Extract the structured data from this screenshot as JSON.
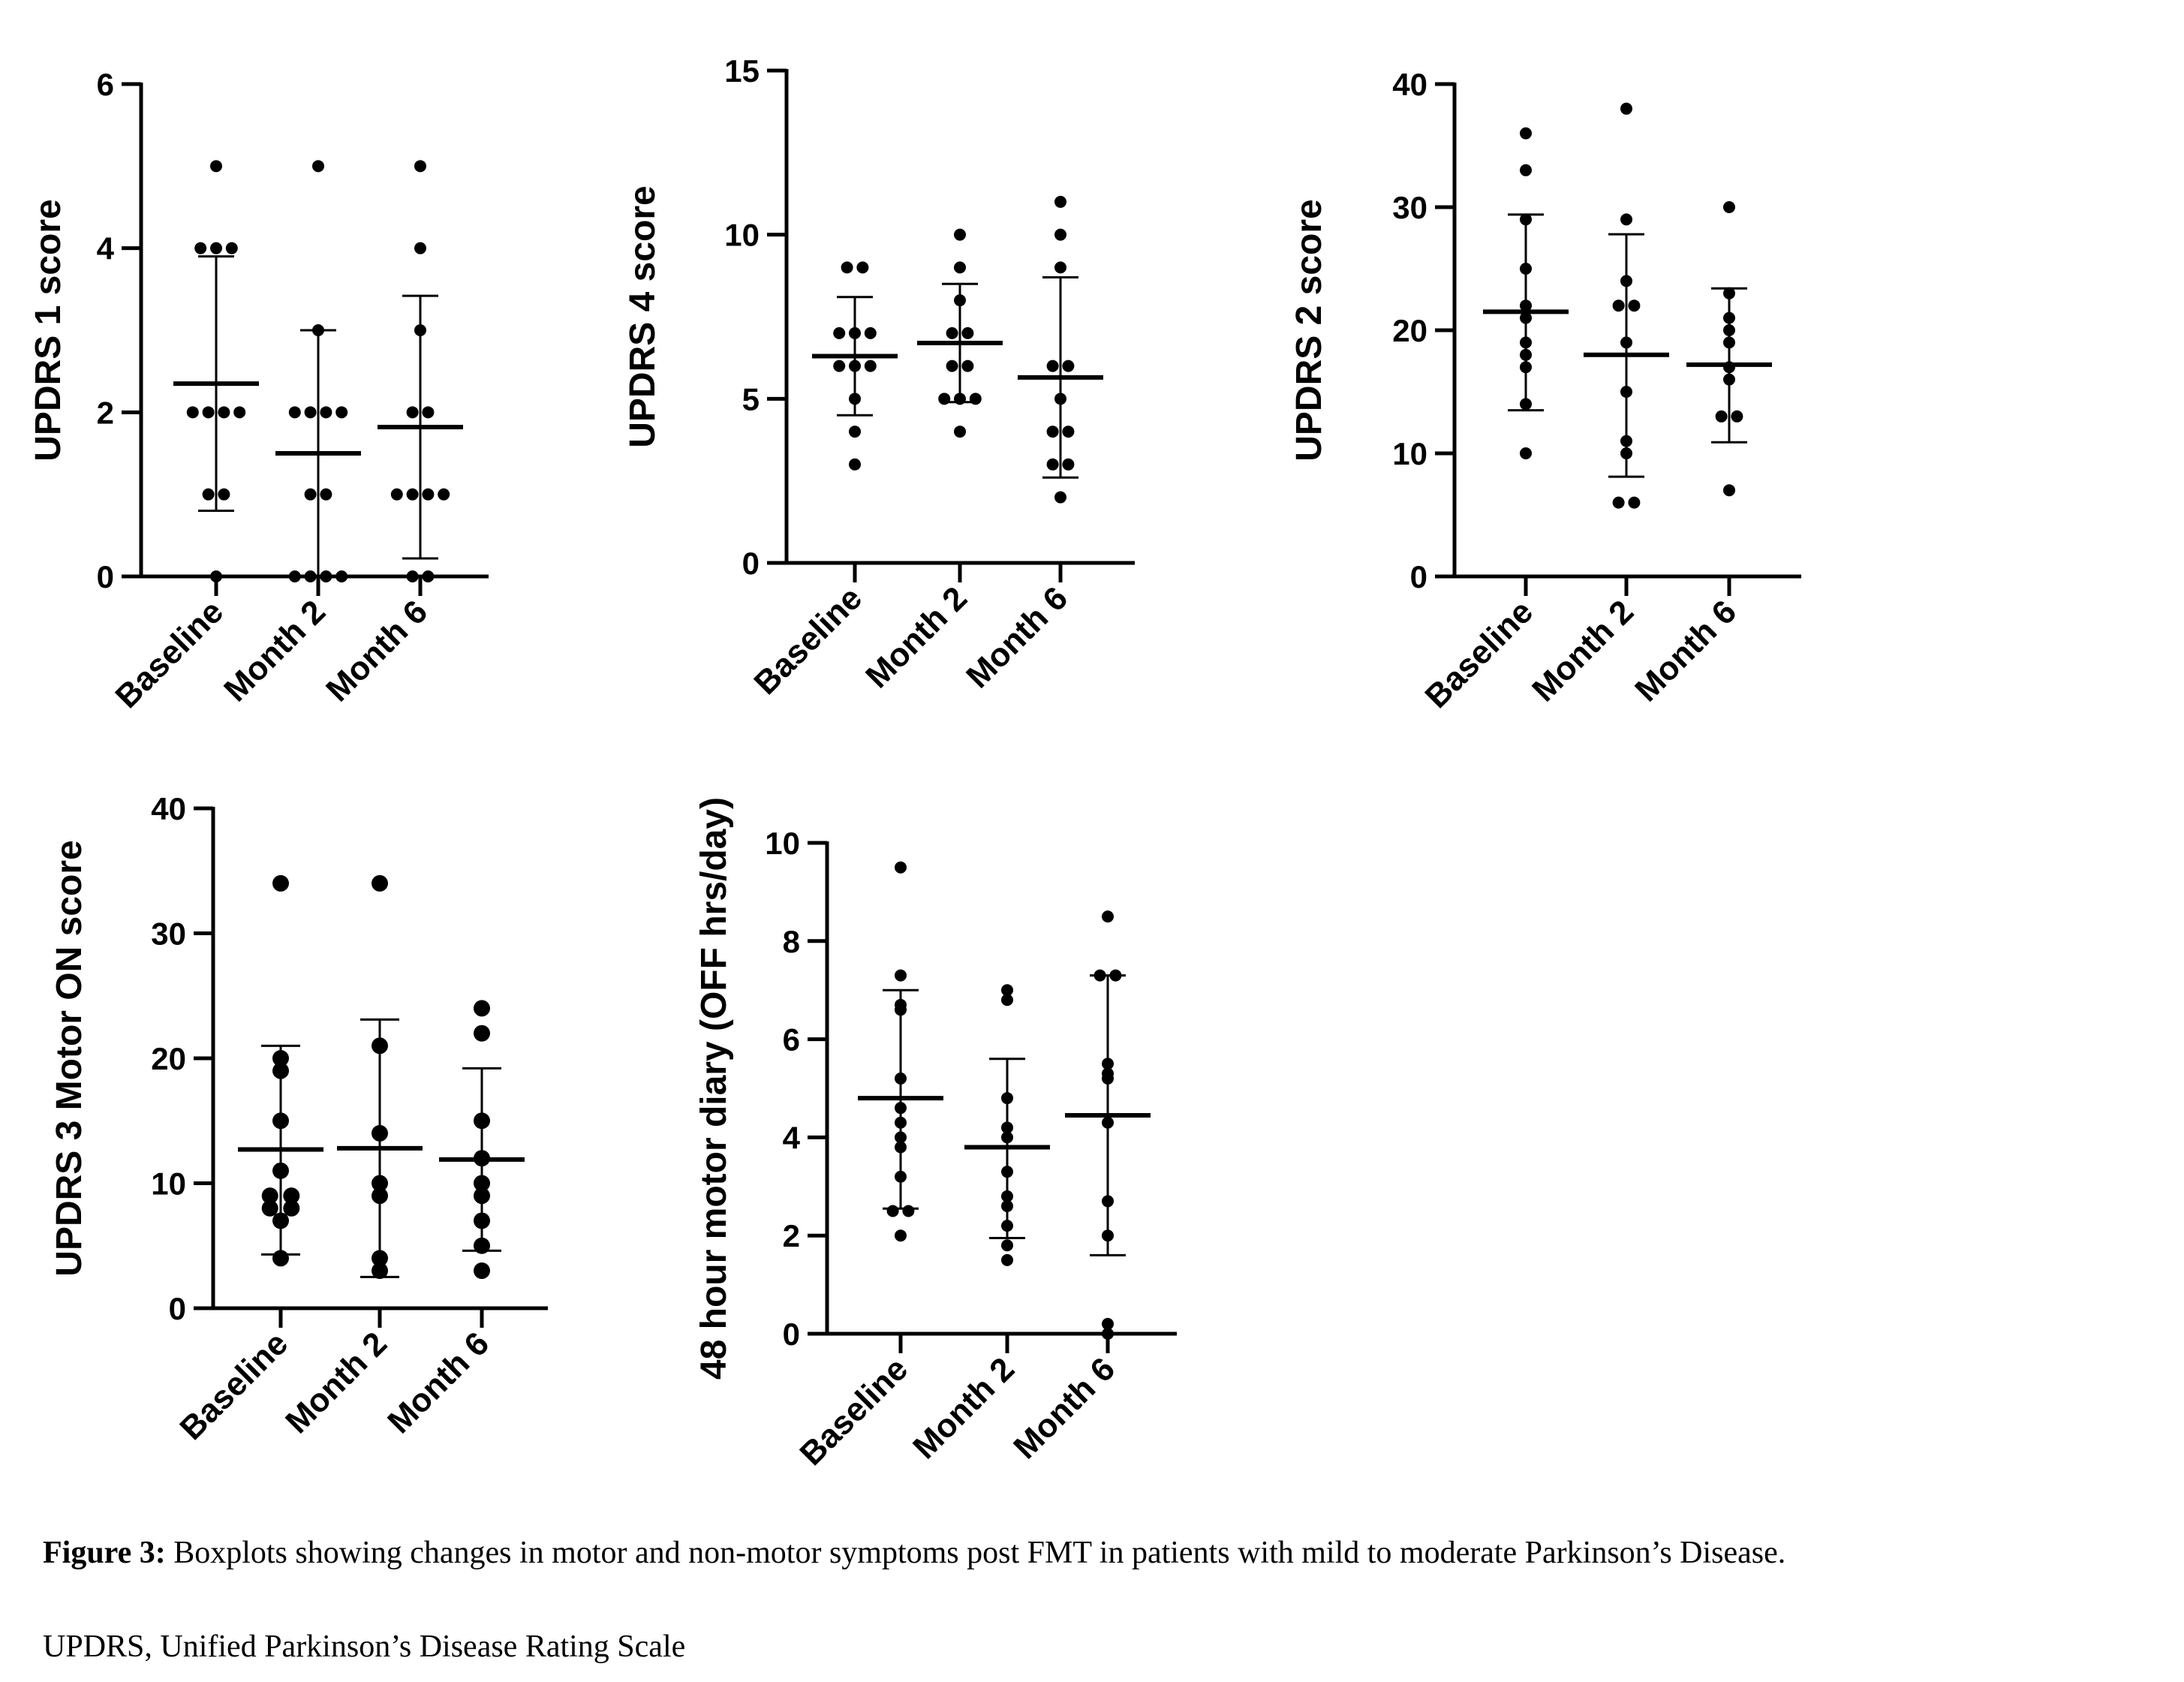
{
  "figure": {
    "caption_label": "Figure 3:",
    "caption_text": " Boxplots showing changes in motor and non-motor symptoms post FMT in patients with mild to moderate Parkinson’s Disease.",
    "note": "UPDRS, Unified Parkinson’s Disease Rating Scale"
  },
  "chart_data": [
    {
      "type": "scatter",
      "ylabel": "UPDRS 1 score",
      "categories": [
        "Baseline",
        "Month 2",
        "Month 6"
      ],
      "ylim": [
        0,
        6
      ],
      "yticks": [
        0,
        2,
        4,
        6
      ],
      "series": [
        {
          "category": "Baseline",
          "values": [
            5,
            4,
            4,
            4,
            2,
            2,
            2,
            2,
            1,
            1,
            0
          ],
          "mean": 2.35,
          "sd_low": 0.8,
          "sd_high": 3.9
        },
        {
          "category": "Month 2",
          "values": [
            5,
            3,
            2,
            2,
            2,
            2,
            1,
            1,
            0,
            0,
            0,
            0
          ],
          "mean": 1.5,
          "sd_low": 0,
          "sd_high": 3.0
        },
        {
          "category": "Month 6",
          "values": [
            5,
            4,
            3,
            2,
            2,
            1,
            1,
            1,
            1,
            0,
            0
          ],
          "mean": 1.82,
          "sd_low": 0.22,
          "sd_high": 3.42
        }
      ]
    },
    {
      "type": "scatter",
      "ylabel": "UPDRS 4 score",
      "categories": [
        "Baseline",
        "Month 2",
        "Month 6"
      ],
      "ylim": [
        0,
        15
      ],
      "yticks": [
        0,
        5,
        10,
        15
      ],
      "series": [
        {
          "category": "Baseline",
          "values": [
            9,
            9,
            7,
            7,
            7,
            6,
            6,
            6,
            5,
            4,
            3
          ],
          "mean": 6.3,
          "sd_low": 4.5,
          "sd_high": 8.1
        },
        {
          "category": "Month 2",
          "values": [
            10,
            9,
            8,
            7,
            7,
            6,
            6,
            5,
            5,
            5,
            4
          ],
          "mean": 6.7,
          "sd_low": 4.9,
          "sd_high": 8.5
        },
        {
          "category": "Month 6",
          "values": [
            11,
            10,
            9,
            6,
            6,
            5,
            4,
            4,
            3,
            3,
            2
          ],
          "mean": 5.65,
          "sd_low": 2.6,
          "sd_high": 8.7
        }
      ]
    },
    {
      "type": "scatter",
      "ylabel": "UPDRS 2 score",
      "categories": [
        "Baseline",
        "Month 2",
        "Month 6"
      ],
      "ylim": [
        0,
        40
      ],
      "yticks": [
        0,
        10,
        20,
        30,
        40
      ],
      "series": [
        {
          "category": "Baseline",
          "values": [
            36,
            33,
            29,
            25,
            22,
            21,
            19,
            18,
            17,
            14,
            10
          ],
          "mean": 21.5,
          "sd_low": 13.5,
          "sd_high": 29.4
        },
        {
          "category": "Month 2",
          "values": [
            38,
            29,
            24,
            22,
            22,
            19,
            15,
            11,
            10,
            6,
            6
          ],
          "mean": 18,
          "sd_low": 8.1,
          "sd_high": 27.8
        },
        {
          "category": "Month 6",
          "values": [
            30,
            23,
            21,
            20,
            19,
            17,
            16,
            13,
            13,
            7
          ],
          "mean": 17.2,
          "sd_low": 10.9,
          "sd_high": 23.4
        }
      ]
    },
    {
      "type": "scatter",
      "ylabel": "UPDRS 3 Motor ON score",
      "categories": [
        "Baseline",
        "Month 2",
        "Month 6"
      ],
      "ylim": [
        0,
        40
      ],
      "yticks": [
        0,
        10,
        20,
        30,
        40
      ],
      "series": [
        {
          "category": "Baseline",
          "values": [
            34,
            20,
            19,
            15,
            11,
            9,
            9,
            8,
            8,
            7,
            4
          ],
          "mean": 12.7,
          "sd_low": 4.3,
          "sd_high": 21
        },
        {
          "category": "Month 2",
          "values": [
            34,
            21,
            14,
            10,
            9,
            4,
            3
          ],
          "mean": 12.8,
          "sd_low": 2.5,
          "sd_high": 23.1
        },
        {
          "category": "Month 6",
          "values": [
            24,
            22,
            15,
            12,
            10,
            9,
            7,
            5,
            3
          ],
          "mean": 11.9,
          "sd_low": 4.6,
          "sd_high": 19.2
        }
      ]
    },
    {
      "type": "scatter",
      "ylabel": "48 hour motor diary (OFF hrs/day)",
      "categories": [
        "Baseline",
        "Month 2",
        "Month 6"
      ],
      "ylim": [
        0,
        10
      ],
      "yticks": [
        0,
        2,
        4,
        6,
        8,
        10
      ],
      "yticks_labeled": true,
      "series": [
        {
          "category": "Baseline",
          "values": [
            9.5,
            7.3,
            6.7,
            6.6,
            5.2,
            4.6,
            4.3,
            4.0,
            3.8,
            3.2,
            2.5,
            2.5,
            2.0
          ],
          "mean": 4.8,
          "sd_low": 2.55,
          "sd_high": 7.0
        },
        {
          "category": "Month 2",
          "values": [
            7.0,
            6.8,
            4.8,
            4.2,
            4.0,
            3.3,
            2.8,
            2.6,
            2.2,
            1.8,
            1.5
          ],
          "mean": 3.8,
          "sd_low": 1.95,
          "sd_high": 5.6
        },
        {
          "category": "Month 6",
          "values": [
            8.5,
            7.3,
            7.3,
            5.5,
            5.3,
            5.2,
            4.3,
            2.7,
            2.0,
            0.2,
            0.0
          ],
          "mean": 4.45,
          "sd_low": 1.6,
          "sd_high": 7.3
        }
      ]
    }
  ]
}
